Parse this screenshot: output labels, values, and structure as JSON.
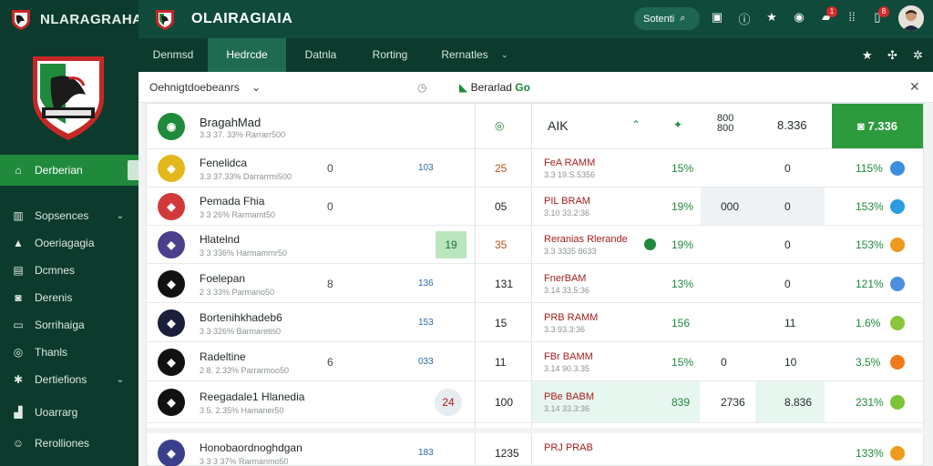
{
  "app": {
    "sidebar_title": "NLARAGRAHA",
    "title": "OLAIRAGIAIA"
  },
  "search": {
    "label": "Sotenti"
  },
  "header_icons": [
    "table-icon",
    "info-icon",
    "star-icon",
    "compass-icon",
    "notification-icon",
    "grid-icon",
    "alert-icon"
  ],
  "badges": {
    "notification": "1",
    "alert": "8"
  },
  "sidebar": {
    "items": [
      {
        "label": "Derberian",
        "icon": "home-icon",
        "active": true
      },
      {
        "label": "Sopsences",
        "icon": "building-icon",
        "chevron": true
      },
      {
        "label": "Ooeriagagia",
        "icon": "cap-icon"
      },
      {
        "label": "Dcmnes",
        "icon": "doc-icon"
      },
      {
        "label": "Derenis",
        "icon": "camera-icon"
      },
      {
        "label": "Sorrihaiga",
        "icon": "folder-icon"
      },
      {
        "label": "Thanls",
        "icon": "globe-icon"
      },
      {
        "label": "Dertiefions",
        "icon": "gear-icon",
        "chevron": true
      },
      {
        "label": "Uoarrarg",
        "icon": "chart-icon"
      },
      {
        "label": "Rerolliones",
        "icon": "user-icon"
      }
    ]
  },
  "tabs": [
    "Denmsd",
    "Hedrcde",
    "Datnla",
    "Rorting",
    "Rernatles"
  ],
  "filter": {
    "select": "Oehnigtdoebeanrs",
    "live_label": "Berarlad",
    "live_value": "Go"
  },
  "table": {
    "header": {
      "name": "BragahMad",
      "sub": "3.3 37. 33% Rarrarr500",
      "c1": "",
      "c2": "",
      "rank": "AIK",
      "v1": "800\n800",
      "v2": "8.336",
      "highlight": "7.336"
    },
    "rows": [
      {
        "name": "Fenelidca",
        "sub": "3.3 37.33% Darrarrmi500",
        "s1": "0",
        "s2": "103",
        "s3": "25",
        "code": "FeA RAMM",
        "codesub": "3.3 19.S.5356",
        "pct": "15%",
        "v1": "",
        "v2": "0",
        "rate": "115%",
        "dot": "#3b8ee0",
        "icon": "#e2b81c"
      },
      {
        "name": "Pemada Fhia",
        "sub": "3 3 26% Rarmarnt50",
        "s1": "0",
        "s2": "",
        "s3": "05",
        "code": "PIL BRAM",
        "codesub": "3.10 33.2:36",
        "pct": "19%",
        "v1": "000",
        "v2": "0",
        "rate": "153%",
        "dot": "#2c9be0",
        "icon": "#d23a3a"
      },
      {
        "name": "Hlatelnd",
        "sub": "3 3 336% Harmamrnr50",
        "s1": "",
        "s2": "19",
        "s3": "35",
        "code": "Reranias Rlerande",
        "codesub": "3.3 3335 8633",
        "pct": "19%",
        "v1": "",
        "v2": "0",
        "rate": "153%",
        "dot": "#f09a1c",
        "icon": "#4b3f8c"
      },
      {
        "name": "Foelepan",
        "sub": "2 3 33% Parmano50",
        "s1": "8",
        "s2": "136",
        "s3": "131",
        "code": "FnerBAM",
        "codesub": "3.14 33.5:36",
        "pct": "13%",
        "v1": "",
        "v2": "0",
        "rate": "121%",
        "dot": "#4c8ee0",
        "icon": "#111111"
      },
      {
        "name": "Bortenihkhadeb6",
        "sub": "3 3 326% Barmaretis0",
        "s1": "",
        "s2": "153",
        "s3": "15",
        "code": "PRB RAMM",
        "codesub": "3.3 93.3:36",
        "pct": "156",
        "v1": "",
        "v2": "11",
        "rate": "1.6%",
        "dot": "#8ac63c",
        "icon": "#1a1f3c"
      },
      {
        "name": "Radeltine",
        "sub": "2 8. 2.33% Parrarmoo50",
        "s1": "6",
        "s2": "033",
        "s3": "11",
        "code": "FBr BAMM",
        "codesub": "3.14 90.3.35",
        "pct": "15%",
        "v1": "0",
        "v2": "10",
        "rate": "3.5%",
        "dot": "#f07a1c",
        "icon": "#111111"
      },
      {
        "name": "Reegadale1 Hlanedia",
        "sub": "3 5. 2.35% Hamaner50",
        "s1": "",
        "s2": "24",
        "s3": "100",
        "code": "PBe BABM",
        "codesub": "3.14 33.3:36",
        "pct": "839",
        "v1": "2736",
        "v2": "8.836",
        "rate": "231%",
        "dot": "#7cc43a",
        "icon": "#111111"
      },
      {
        "name": "Honobaordnoghdgan",
        "sub": "3 3 3 37% Rarmanmo50",
        "s1": "",
        "s2": "183",
        "s3": "1235",
        "code": "PRJ PRAB",
        "codesub": "",
        "pct": "",
        "v1": "",
        "v2": "",
        "rate": "133%",
        "dot": "#f09a1c",
        "icon": "#3a3f8c"
      }
    ]
  },
  "colors": {
    "sidebar": "#0c3b2e",
    "accent": "#1f8a3c",
    "topbar": "#0f4a3b"
  }
}
